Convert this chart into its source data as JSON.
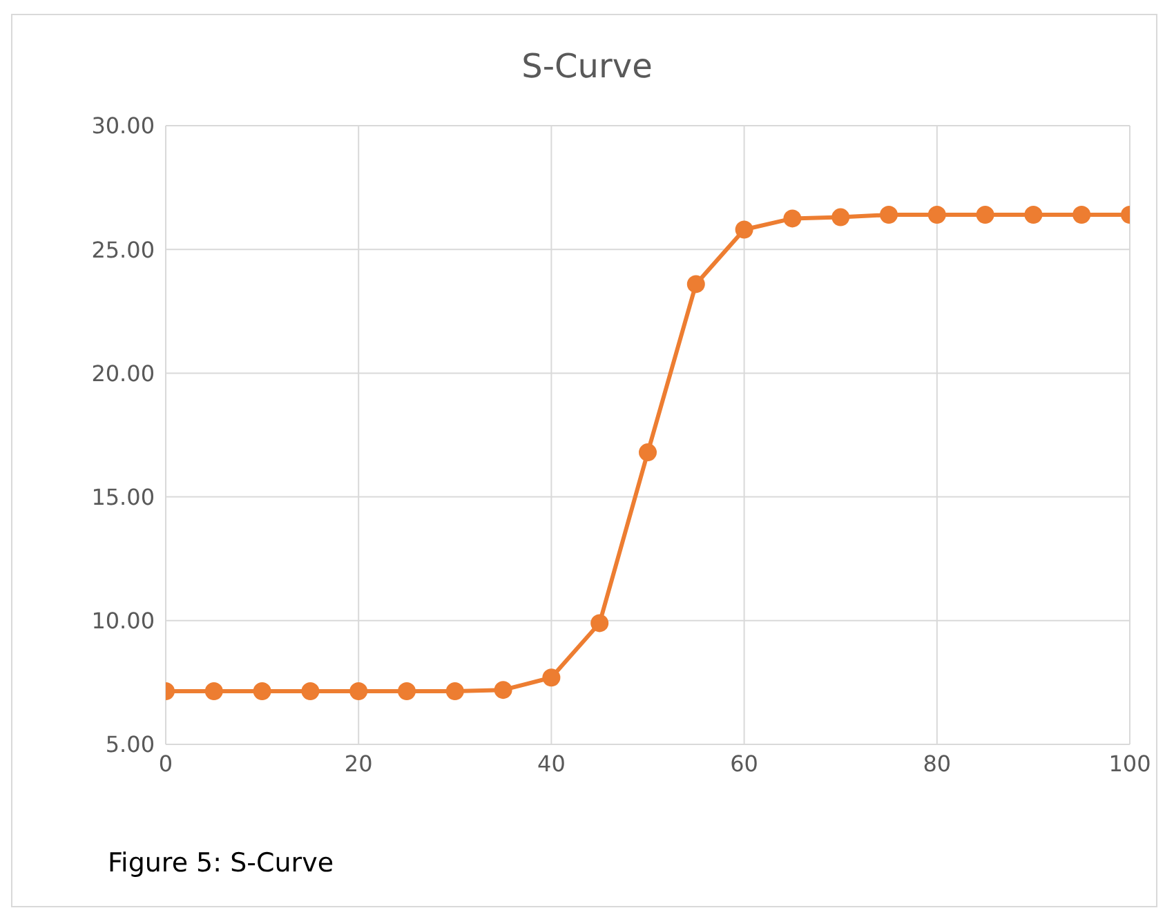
{
  "chart_data": {
    "type": "line",
    "title": "S-Curve",
    "annotations": [
      "Figure 5: S-Curve"
    ],
    "x": [
      0,
      5,
      10,
      15,
      20,
      25,
      30,
      35,
      40,
      45,
      50,
      55,
      60,
      65,
      70,
      75,
      80,
      85,
      90,
      95,
      100
    ],
    "series": [
      {
        "color": "#ed7d31",
        "values": [
          7.15,
          7.15,
          7.15,
          7.15,
          7.15,
          7.15,
          7.15,
          7.2,
          7.7,
          9.9,
          16.8,
          23.6,
          25.8,
          26.25,
          26.3,
          26.4,
          26.4,
          26.4,
          26.4,
          26.4,
          26.4
        ]
      }
    ],
    "xlim": [
      0,
      100
    ],
    "xticks": [
      0,
      20,
      40,
      60,
      80,
      100
    ],
    "ylim": [
      5,
      30
    ],
    "yticks": [
      {
        "value": 5,
        "label": "5.00"
      },
      {
        "value": 10,
        "label": "10.00"
      },
      {
        "value": 15,
        "label": "15.00"
      },
      {
        "value": 20,
        "label": "20.00"
      },
      {
        "value": 25,
        "label": "25.00"
      },
      {
        "value": 30,
        "label": "30.00"
      }
    ],
    "grid": true,
    "marker": "circle",
    "line_style": "solid"
  }
}
